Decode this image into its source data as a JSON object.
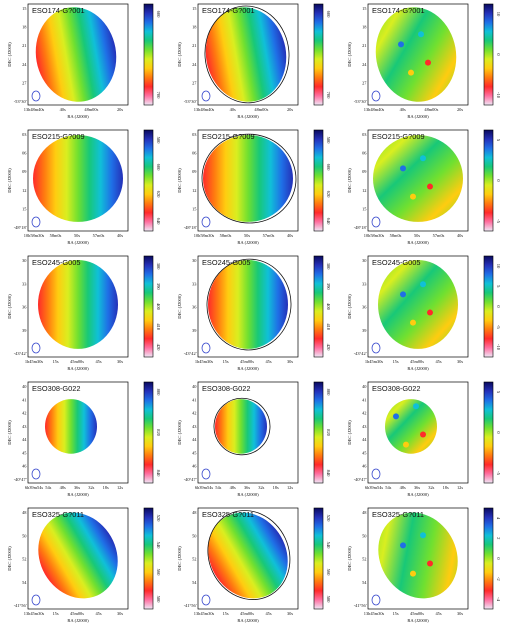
{
  "axes": {
    "ra_label": "RA (J2000)",
    "dec_label": "DEC (J2000)"
  },
  "column_kinds": [
    "velocity-field",
    "model-with-outline",
    "residual"
  ],
  "colors": {
    "cmap": [
      "#f0e6f6",
      "#ff6fa0",
      "#ff2a2a",
      "#ff7a10",
      "#ffcc10",
      "#d9ee20",
      "#70e030",
      "#18c878",
      "#10c0d8",
      "#1f6fe6",
      "#2430b8",
      "#0a0a5c"
    ]
  },
  "rows": [
    {
      "name": "ESO174-G?001",
      "dec_ticks": [
        "15",
        "18",
        "21",
        "24",
        "27",
        "-53°30'"
      ],
      "ra_ticks": [
        "13h48m40s",
        "40s",
        "48m00s",
        "20s"
      ],
      "vel_ticks": [
        "600",
        "700"
      ],
      "res_ticks": [
        "10",
        "0",
        "-10"
      ]
    },
    {
      "name": "ESO215-G?009",
      "dec_ticks": [
        "03",
        "06",
        "09",
        "12",
        "15",
        "-48°18'"
      ],
      "ra_ticks": [
        "10h58m30s",
        "58m0s",
        "50s",
        "57m0s",
        "40s"
      ],
      "vel_ticks": [
        "580",
        "600",
        "620",
        "640"
      ],
      "res_ticks": [
        "5",
        "0",
        "-5"
      ]
    },
    {
      "name": "ESO245-G005",
      "dec_ticks": [
        "30",
        "33",
        "36",
        "39",
        "-43°42'"
      ],
      "ra_ticks": [
        "1h45m30s",
        "15s",
        "45m00s",
        "45s",
        "30s"
      ],
      "vel_ticks": [
        "380",
        "390",
        "400",
        "410",
        "420"
      ],
      "res_ticks": [
        "10",
        "5",
        "0",
        "-5",
        "-10"
      ]
    },
    {
      "name": "ESO308-G022",
      "dec_ticks": [
        "40",
        "41",
        "42",
        "43",
        "44",
        "45",
        "46",
        "-40°47'"
      ],
      "ra_ticks": [
        "6h39m54s",
        "54s",
        "48s",
        "36s",
        "32s",
        "18s",
        "12s"
      ],
      "vel_ticks": [
        "800",
        "820",
        "840"
      ],
      "res_ticks": [
        "5",
        "0",
        "-5"
      ]
    },
    {
      "name": "ESO325-G?011",
      "dec_ticks": [
        "48",
        "50",
        "52",
        "54",
        "-41°56'"
      ],
      "ra_ticks": [
        "13h45m30s",
        "15s",
        "45m00s",
        "45s",
        "30s"
      ],
      "vel_ticks": [
        "520",
        "540",
        "560",
        "580"
      ],
      "res_ticks": [
        "4",
        "2",
        "0",
        "-2",
        "-4"
      ]
    }
  ]
}
